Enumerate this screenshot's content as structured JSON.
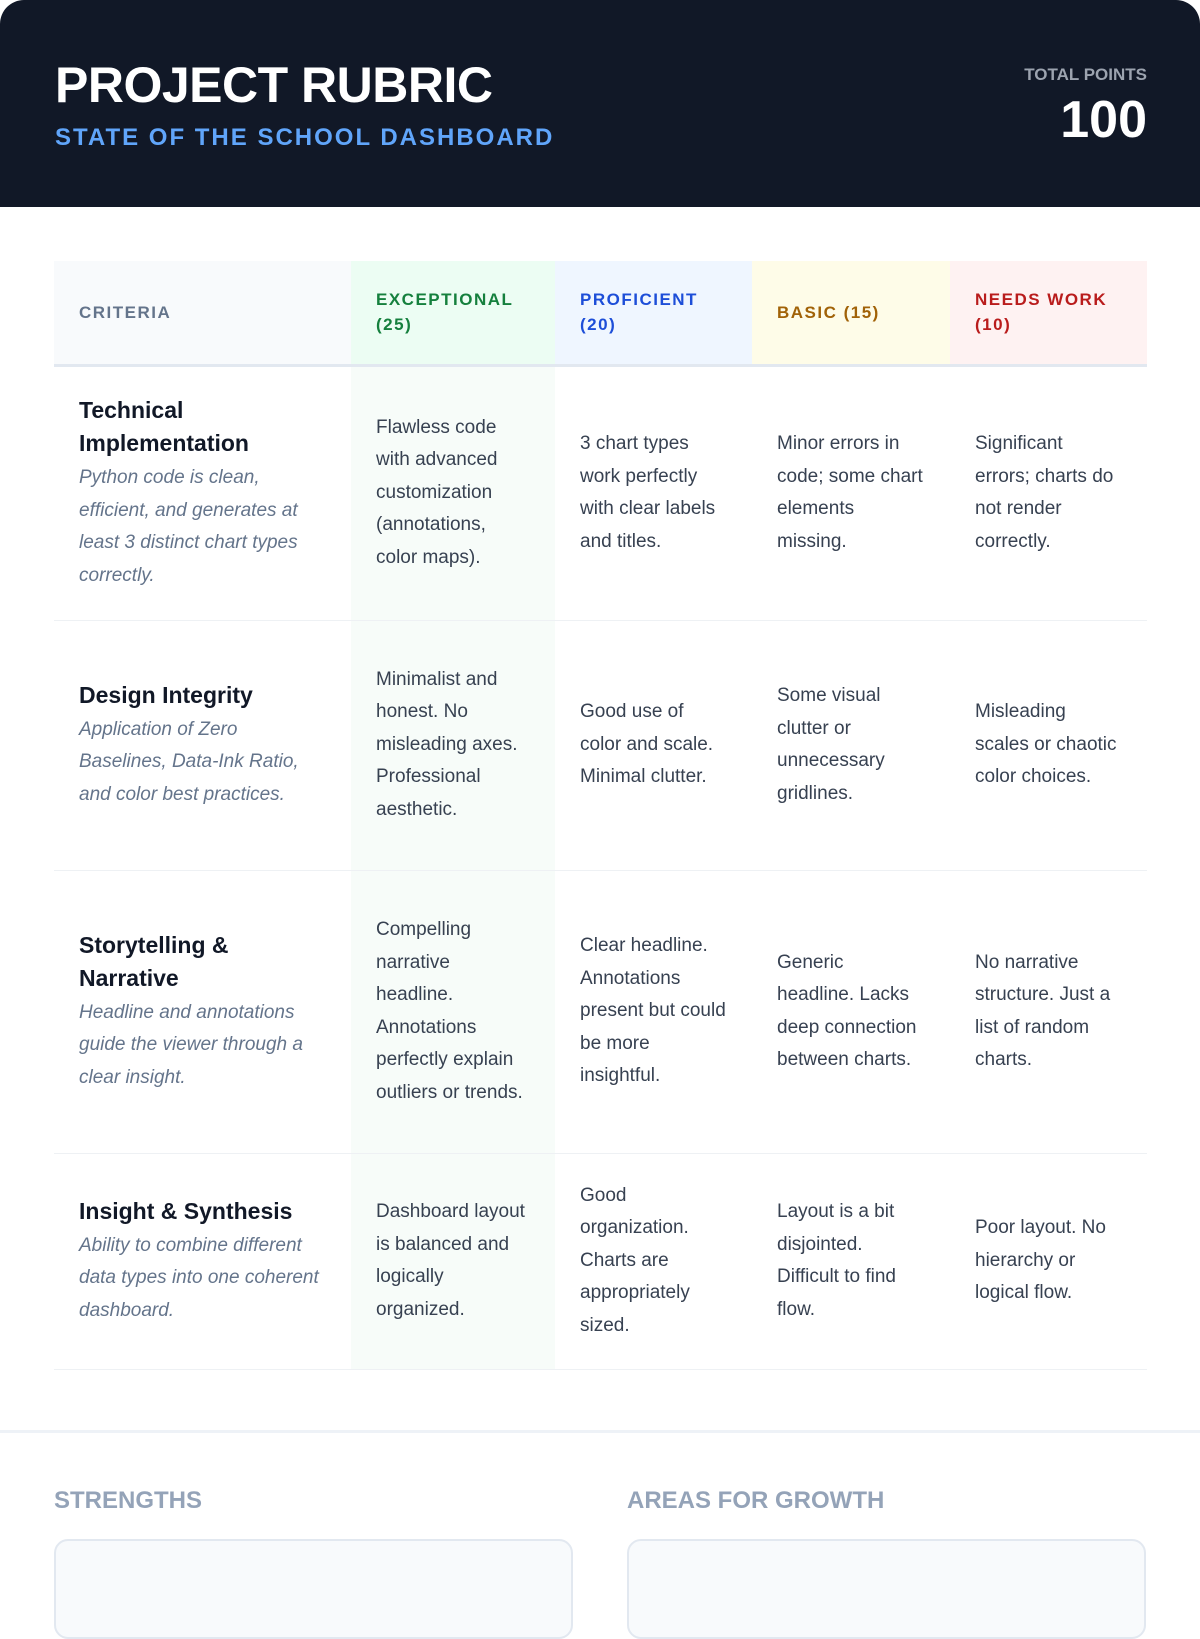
{
  "header": {
    "title": "PROJECT RUBRIC",
    "subtitle": "STATE OF THE SCHOOL DASHBOARD",
    "total_points_label": "TOTAL POINTS",
    "total_points": "100"
  },
  "table": {
    "columns": [
      {
        "label": "CRITERIA",
        "color": "#64748b",
        "bg": "#f8fafc"
      },
      {
        "label": "EXCEPTIONAL (25)",
        "color": "#15803d",
        "bg": "#ecfdf3"
      },
      {
        "label": "PROFICIENT (20)",
        "color": "#1d4ed8",
        "bg": "#eff6ff"
      },
      {
        "label": "BASIC (15)",
        "color": "#a16207",
        "bg": "#fefce8"
      },
      {
        "label": "NEEDS WORK (10)",
        "color": "#b91c1c",
        "bg": "#fef2f2"
      }
    ],
    "rows": [
      {
        "name": "Technical Implementation",
        "desc": "Python code is clean, efficient, and generates at least 3 distinct chart types correctly.",
        "exceptional": "Flawless code with advanced customization (annotations, color maps).",
        "proficient": "3 chart types work perfectly with clear labels and titles.",
        "basic": "Minor errors in code; some chart elements missing.",
        "needs_work": "Significant errors; charts do not render correctly."
      },
      {
        "name": "Design Integrity",
        "desc": "Application of Zero Baselines, Data-Ink Ratio, and color best practices.",
        "exceptional": "Minimalist and honest. No misleading axes. Professional aesthetic.",
        "proficient": "Good use of color and scale. Minimal clutter.",
        "basic": "Some visual clutter or unnecessary gridlines.",
        "needs_work": "Misleading scales or chaotic color choices."
      },
      {
        "name": "Storytelling & Narrative",
        "desc": "Headline and annotations guide the viewer through a clear insight.",
        "exceptional": "Compelling narrative headline. Annotations perfectly explain outliers or trends.",
        "proficient": "Clear headline. Annotations present but could be more insightful.",
        "basic": "Generic headline. Lacks deep connection between charts.",
        "needs_work": "No narrative structure. Just a list of random charts."
      },
      {
        "name": "Insight & Synthesis",
        "desc": "Ability to combine different data types into one coherent dashboard.",
        "exceptional": "Dashboard layout is balanced and logically organized.",
        "proficient": "Good organization. Charts are appropriately sized.",
        "basic": "Layout is a bit disjointed. Difficult to find flow.",
        "needs_work": "Poor layout. No hierarchy or logical flow."
      }
    ]
  },
  "feedback": {
    "strengths_label": "STRENGTHS",
    "growth_label": "AREAS FOR GROWTH"
  }
}
